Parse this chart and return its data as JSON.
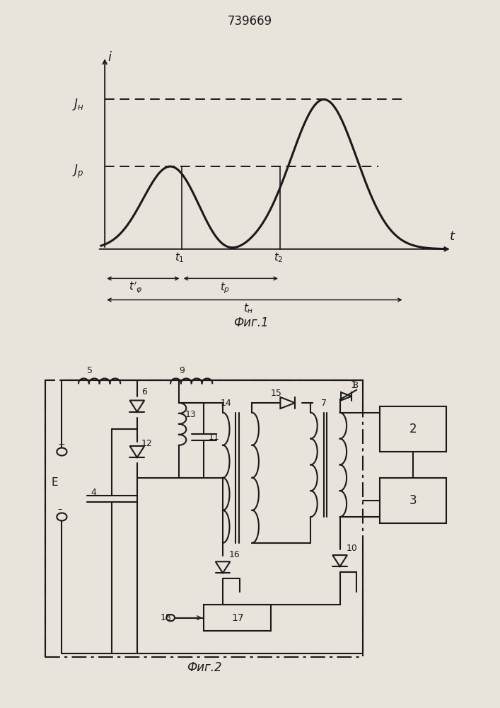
{
  "title": "739669",
  "fig1_label": "Фиг.1",
  "fig2_label": "Фиг.2",
  "bg_color": "#e8e4dc",
  "lc": "#1a1a1a",
  "Jn_label": "$J_n$",
  "Jp_label": "$J_p$",
  "i_label": "i",
  "t_label": "t",
  "curve_lw": 2.2,
  "axis_lw": 1.4,
  "circuit_lw": 1.5
}
